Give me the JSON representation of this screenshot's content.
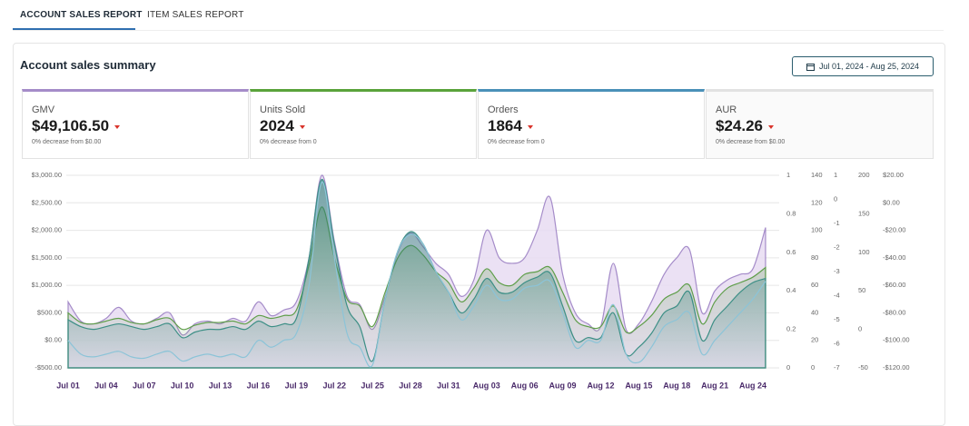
{
  "tabs": [
    "ACCOUNT SALES REPORT",
    "ITEM SALES REPORT"
  ],
  "title": "Account sales summary",
  "date_range": "Jul 01, 2024 - Aug 25, 2024",
  "kpis": [
    {
      "label": "GMV",
      "value": "$49,106.50",
      "note": "0% decrease from $0.00"
    },
    {
      "label": "Units Sold",
      "value": "2024",
      "note": "0% decrease from 0"
    },
    {
      "label": "Orders",
      "value": "1864",
      "note": "0% decrease from 0"
    },
    {
      "label": "AUR",
      "value": "$24.26",
      "note": "0% decrease from $0.00"
    }
  ],
  "chart_data": {
    "type": "area",
    "categories": [
      "Jul 01",
      null,
      null,
      "Jul 04",
      null,
      null,
      "Jul 07",
      null,
      null,
      "Jul 10",
      null,
      null,
      "Jul 13",
      null,
      null,
      "Jul 16",
      null,
      null,
      "Jul 19",
      null,
      null,
      "Jul 22",
      null,
      null,
      "Jul 25",
      null,
      null,
      "Jul 28",
      null,
      null,
      "Jul 31",
      null,
      null,
      "Aug 03",
      null,
      null,
      "Aug 06",
      null,
      null,
      "Aug 09",
      null,
      null,
      "Aug 12",
      null,
      null,
      "Aug 15",
      null,
      null,
      "Aug 18",
      null,
      null,
      "Aug 21",
      null,
      null,
      "Aug 24",
      null
    ],
    "ylim": [
      -500,
      3000
    ],
    "yticks": [
      {
        "value": -500,
        "label": "-$500.00"
      },
      {
        "value": 0,
        "label": "$0.00"
      },
      {
        "value": 500,
        "label": "$500.00"
      },
      {
        "value": 1000,
        "label": "$1,000.00"
      },
      {
        "value": 1500,
        "label": "$1,500.00"
      },
      {
        "value": 2000,
        "label": "$2,000.00"
      },
      {
        "value": 2500,
        "label": "$2,500.00"
      },
      {
        "value": 3000,
        "label": "$3,000.00"
      }
    ],
    "grid": true,
    "right_axes": [
      {
        "lim": [
          0,
          1
        ],
        "ticks": [
          0,
          0.2,
          0.4,
          0.6,
          0.8,
          1
        ]
      },
      {
        "lim": [
          0,
          140
        ],
        "ticks": [
          0,
          20,
          40,
          60,
          80,
          100,
          120,
          140
        ]
      },
      {
        "lim": [
          -7,
          1
        ],
        "ticks": [
          -7,
          -6,
          -5,
          -4,
          -3,
          -2,
          -1,
          0,
          1
        ]
      },
      {
        "lim": [
          -50,
          200
        ],
        "ticks": [
          -50,
          0,
          50,
          100,
          150,
          200
        ]
      },
      {
        "lim": [
          -120,
          20
        ],
        "ticks": [
          {
            "value": -120,
            "label": "-$120.00"
          },
          {
            "value": -100,
            "label": "-$100.00"
          },
          {
            "value": -80,
            "label": "-$80.00"
          },
          {
            "value": -60,
            "label": "-$60.00"
          },
          {
            "value": -40,
            "label": "-$40.00"
          },
          {
            "value": -20,
            "label": "-$20.00"
          },
          {
            "value": 0,
            "label": "$0.00"
          },
          {
            "value": 20,
            "label": "$20.00"
          }
        ]
      }
    ],
    "series": [
      {
        "color": "#a58cc9",
        "fill": true,
        "values": [
          700,
          350,
          300,
          400,
          600,
          350,
          300,
          400,
          500,
          100,
          300,
          350,
          300,
          400,
          350,
          700,
          450,
          550,
          700,
          1500,
          3000,
          1800,
          800,
          650,
          200,
          800,
          1600,
          1950,
          1700,
          1400,
          1200,
          800,
          1100,
          2000,
          1500,
          1400,
          1500,
          2000,
          2600,
          1200,
          500,
          300,
          250,
          1400,
          200,
          300,
          700,
          1200,
          1500,
          1650,
          500,
          900,
          1100,
          1200,
          1300,
          2050
        ]
      },
      {
        "color": "#5f9e4a",
        "fill": true,
        "axis": 1,
        "values": [
          40,
          33,
          32,
          34,
          36,
          33,
          32,
          35,
          36,
          28,
          31,
          33,
          33,
          34,
          32,
          38,
          36,
          38,
          42,
          75,
          117,
          80,
          50,
          45,
          30,
          55,
          80,
          89,
          82,
          70,
          62,
          48,
          58,
          72,
          62,
          60,
          68,
          70,
          73,
          55,
          35,
          30,
          30,
          45,
          26,
          30,
          38,
          50,
          55,
          60,
          32,
          48,
          58,
          62,
          66,
          73
        ]
      },
      {
        "color": "#3d8f86",
        "fill": true,
        "axis": 1,
        "values": [
          35,
          30,
          28,
          30,
          32,
          30,
          28,
          30,
          32,
          22,
          26,
          28,
          28,
          30,
          28,
          34,
          30,
          32,
          36,
          80,
          137,
          90,
          45,
          30,
          5,
          50,
          85,
          99,
          90,
          70,
          55,
          40,
          50,
          65,
          55,
          55,
          62,
          66,
          69,
          45,
          20,
          22,
          22,
          40,
          10,
          15,
          25,
          40,
          45,
          55,
          20,
          35,
          45,
          55,
          62,
          65
        ]
      },
      {
        "color": "#8cc4d8",
        "fill": false,
        "axis": 4,
        "values": [
          -100,
          -110,
          -112,
          -110,
          -108,
          -112,
          -113,
          -110,
          -108,
          -115,
          -112,
          -110,
          -112,
          -110,
          -112,
          -100,
          -105,
          -100,
          -95,
          -60,
          15,
          -40,
          -95,
          -105,
          -118,
          -70,
          -35,
          -23,
          -30,
          -50,
          -65,
          -85,
          -75,
          -60,
          -70,
          -70,
          -62,
          -60,
          -57,
          -80,
          -105,
          -100,
          -100,
          -74,
          -110,
          -116,
          -105,
          -90,
          -85,
          -80,
          -110,
          -100,
          -90,
          -80,
          -70,
          -57
        ]
      }
    ]
  }
}
